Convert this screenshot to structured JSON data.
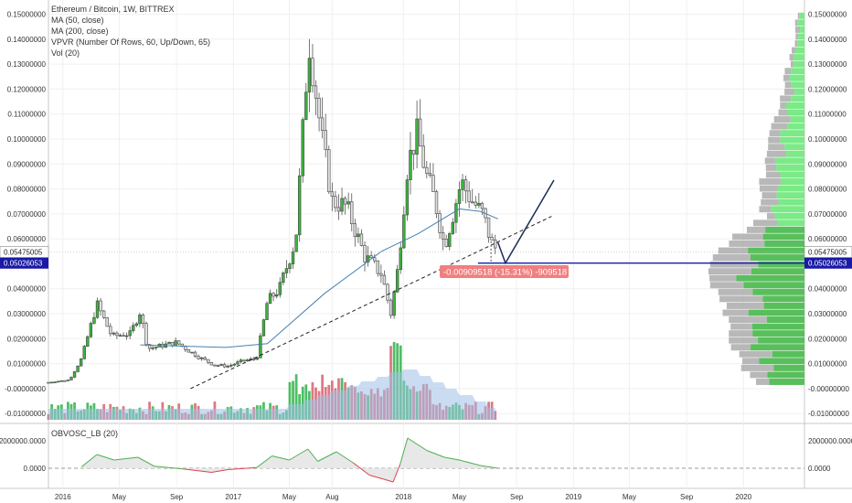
{
  "legend": {
    "line1": "Ethereum / Bitcoin, 1W, BITTREX",
    "line2": "MA (50, close)",
    "line3": "MA (200, close)",
    "line4": "VPVR (Number Of Rows, 60, Up/Down, 65)",
    "line5": "Vol (20)"
  },
  "oscillator": {
    "label": "OBVOSC_LB (20)",
    "ticks": [
      "2000000.0000",
      "0.0000"
    ]
  },
  "annotations": {
    "current_price_label": "0.05475005",
    "support_label": "0.05026053",
    "measure_label": "-0.00909518 (-15.31%) -909518"
  },
  "colors": {
    "up": "#3cb33c",
    "down": "#e0e0e0",
    "ma50": "#4682b4",
    "support": "#1a1aa6",
    "measure_bg": "#f08080",
    "vpvr_up": "#47b84a",
    "vpvr_down": "#b0b0b0",
    "volume_area": "#9fbfe8"
  },
  "chart_data": {
    "type": "candlestick",
    "title": "Ethereum / Bitcoin, 1W, BITTREX",
    "y_ticks": [
      "0.15000000",
      "0.14000000",
      "0.13000000",
      "0.12000000",
      "0.11000000",
      "0.10000000",
      "0.09000000",
      "0.08000000",
      "0.07000000",
      "0.06000000",
      "0.04000000",
      "0.03000000",
      "0.02000000",
      "0.01000000",
      "-0.00000000",
      "-0.01000000"
    ],
    "y_ticks_right": [
      "0.15000000",
      "0.14000000",
      "0.13000000",
      "0.12000000",
      "0.11000000",
      "0.10000000",
      "0.09000000",
      "0.08000000",
      "0.07000000",
      "0.06000000",
      "0.04000000",
      "0.03000000",
      "0.02000000",
      "0.01000000",
      "-0.00000000",
      "-0.01000000"
    ],
    "ylim": [
      -0.0125,
      0.1535
    ],
    "x_ticks": [
      "2016",
      "May",
      "Sep",
      "2017",
      "May",
      "Aug",
      "2018",
      "May",
      "Sep",
      "2019",
      "May",
      "Sep",
      "2020"
    ],
    "weekly_close_keypoints": [
      {
        "date": "2015-12-01",
        "value": 0.0025
      },
      {
        "date": "2016-01-15",
        "value": 0.0035
      },
      {
        "date": "2016-02-10",
        "value": 0.012
      },
      {
        "date": "2016-03-14",
        "value": 0.034
      },
      {
        "date": "2016-04-15",
        "value": 0.021
      },
      {
        "date": "2016-05-25",
        "value": 0.022
      },
      {
        "date": "2016-06-15",
        "value": 0.031
      },
      {
        "date": "2016-07-01",
        "value": 0.016
      },
      {
        "date": "2016-09-01",
        "value": 0.0185
      },
      {
        "date": "2016-10-15",
        "value": 0.013
      },
      {
        "date": "2016-11-20",
        "value": 0.0095
      },
      {
        "date": "2016-12-20",
        "value": 0.009
      },
      {
        "date": "2017-01-20",
        "value": 0.011
      },
      {
        "date": "2017-02-20",
        "value": 0.012
      },
      {
        "date": "2017-03-15",
        "value": 0.035
      },
      {
        "date": "2017-04-10",
        "value": 0.04
      },
      {
        "date": "2017-05-15",
        "value": 0.06
      },
      {
        "date": "2017-06-12",
        "value": 0.14
      },
      {
        "date": "2017-07-10",
        "value": 0.1
      },
      {
        "date": "2017-08-01",
        "value": 0.075
      },
      {
        "date": "2017-09-01",
        "value": 0.073
      },
      {
        "date": "2017-10-10",
        "value": 0.053
      },
      {
        "date": "2017-11-15",
        "value": 0.046
      },
      {
        "date": "2017-12-05",
        "value": 0.03
      },
      {
        "date": "2017-12-20",
        "value": 0.048
      },
      {
        "date": "2018-01-10",
        "value": 0.09
      },
      {
        "date": "2018-01-30",
        "value": 0.102
      },
      {
        "date": "2018-02-20",
        "value": 0.085
      },
      {
        "date": "2018-03-10",
        "value": 0.075
      },
      {
        "date": "2018-03-30",
        "value": 0.057
      },
      {
        "date": "2018-04-20",
        "value": 0.072
      },
      {
        "date": "2018-05-05",
        "value": 0.083
      },
      {
        "date": "2018-05-25",
        "value": 0.076
      },
      {
        "date": "2018-06-20",
        "value": 0.07
      },
      {
        "date": "2018-07-10",
        "value": 0.058
      },
      {
        "date": "2018-07-23",
        "value": 0.055
      }
    ],
    "ma50_keypoints": [
      {
        "date": "2016-06-15",
        "value": 0.0175
      },
      {
        "date": "2016-12-15",
        "value": 0.0165
      },
      {
        "date": "2017-03-15",
        "value": 0.018
      },
      {
        "date": "2017-07-15",
        "value": 0.038
      },
      {
        "date": "2017-11-15",
        "value": 0.055
      },
      {
        "date": "2018-02-01",
        "value": 0.062
      },
      {
        "date": "2018-05-01",
        "value": 0.072
      },
      {
        "date": "2018-06-15",
        "value": 0.071
      },
      {
        "date": "2018-07-23",
        "value": 0.068
      }
    ],
    "trendline": {
      "from": {
        "date": "2016-10-01",
        "value": 0.0
      },
      "to": {
        "date": "2018-11-15",
        "value": 0.069
      }
    },
    "support_level": 0.05026053,
    "current_price": 0.05475005,
    "projection": [
      {
        "date": "2018-07-23",
        "value": 0.0585
      },
      {
        "date": "2018-08-08",
        "value": 0.0503
      },
      {
        "date": "2018-11-20",
        "value": 0.0835
      }
    ]
  }
}
